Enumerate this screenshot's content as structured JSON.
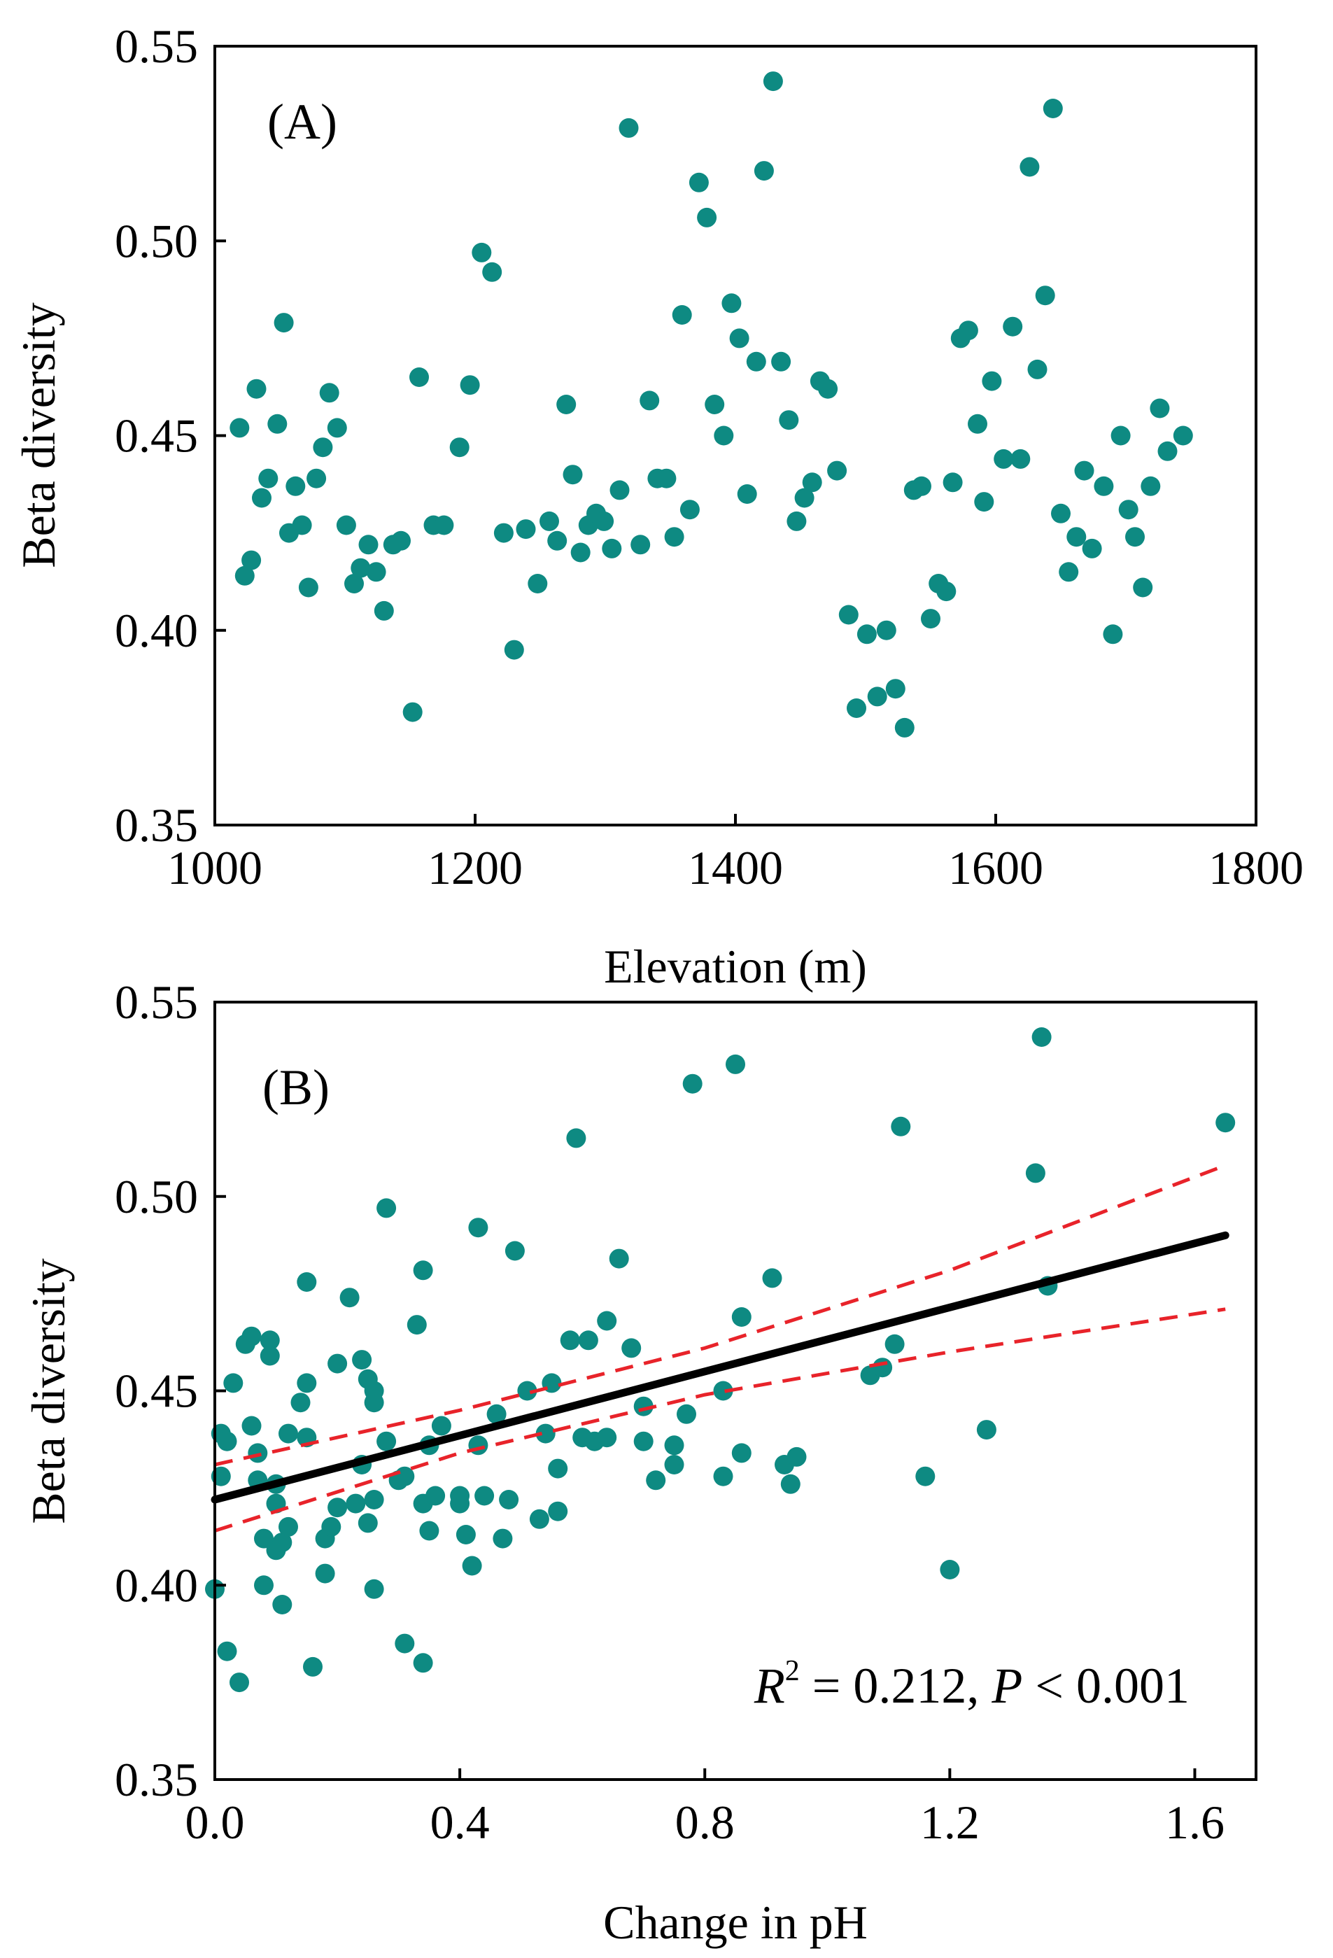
{
  "chart_data": [
    {
      "type": "scatter",
      "panel_label": "(A)",
      "xlabel": "Elevation (m)",
      "ylabel": "Beta diversity",
      "xlim": [
        1000,
        1800
      ],
      "ylim": [
        0.35,
        0.55
      ],
      "xticks": [
        1000,
        1200,
        1400,
        1600,
        1800
      ],
      "xtick_labels": [
        "1000",
        "1200",
        "1400",
        "1600",
        "1800"
      ],
      "yticks": [
        0.35,
        0.4,
        0.45,
        0.5,
        0.55
      ],
      "ytick_labels": [
        "0.35",
        "0.40",
        "0.45",
        "0.50",
        "0.55"
      ],
      "point_color": "#0e8a82",
      "points": [
        [
          1019,
          0.452
        ],
        [
          1023,
          0.414
        ],
        [
          1028,
          0.418
        ],
        [
          1032,
          0.462
        ],
        [
          1036,
          0.434
        ],
        [
          1041,
          0.439
        ],
        [
          1048,
          0.453
        ],
        [
          1053,
          0.479
        ],
        [
          1057,
          0.425
        ],
        [
          1062,
          0.437
        ],
        [
          1067,
          0.427
        ],
        [
          1072,
          0.411
        ],
        [
          1078,
          0.439
        ],
        [
          1083,
          0.447
        ],
        [
          1088,
          0.461
        ],
        [
          1094,
          0.452
        ],
        [
          1101,
          0.427
        ],
        [
          1107,
          0.412
        ],
        [
          1112,
          0.416
        ],
        [
          1118,
          0.422
        ],
        [
          1124,
          0.415
        ],
        [
          1130,
          0.405
        ],
        [
          1137,
          0.422
        ],
        [
          1143,
          0.423
        ],
        [
          1152,
          0.379
        ],
        [
          1157,
          0.465
        ],
        [
          1168,
          0.427
        ],
        [
          1176,
          0.427
        ],
        [
          1188,
          0.447
        ],
        [
          1196,
          0.463
        ],
        [
          1205,
          0.497
        ],
        [
          1213,
          0.492
        ],
        [
          1222,
          0.425
        ],
        [
          1230,
          0.395
        ],
        [
          1239,
          0.426
        ],
        [
          1248,
          0.412
        ],
        [
          1257,
          0.428
        ],
        [
          1263,
          0.423
        ],
        [
          1270,
          0.458
        ],
        [
          1275,
          0.44
        ],
        [
          1281,
          0.42
        ],
        [
          1287,
          0.427
        ],
        [
          1293,
          0.43
        ],
        [
          1299,
          0.428
        ],
        [
          1305,
          0.421
        ],
        [
          1311,
          0.436
        ],
        [
          1318,
          0.529
        ],
        [
          1327,
          0.422
        ],
        [
          1334,
          0.459
        ],
        [
          1340,
          0.439
        ],
        [
          1347,
          0.439
        ],
        [
          1353,
          0.424
        ],
        [
          1359,
          0.481
        ],
        [
          1365,
          0.431
        ],
        [
          1372,
          0.515
        ],
        [
          1378,
          0.506
        ],
        [
          1384,
          0.458
        ],
        [
          1391,
          0.45
        ],
        [
          1397,
          0.484
        ],
        [
          1403,
          0.475
        ],
        [
          1409,
          0.435
        ],
        [
          1416,
          0.469
        ],
        [
          1422,
          0.518
        ],
        [
          1429,
          0.541
        ],
        [
          1435,
          0.469
        ],
        [
          1441,
          0.454
        ],
        [
          1447,
          0.428
        ],
        [
          1453,
          0.434
        ],
        [
          1459,
          0.438
        ],
        [
          1465,
          0.464
        ],
        [
          1471,
          0.462
        ],
        [
          1478,
          0.441
        ],
        [
          1487,
          0.404
        ],
        [
          1493,
          0.38
        ],
        [
          1501,
          0.399
        ],
        [
          1509,
          0.383
        ],
        [
          1516,
          0.4
        ],
        [
          1523,
          0.385
        ],
        [
          1530,
          0.375
        ],
        [
          1537,
          0.436
        ],
        [
          1543,
          0.437
        ],
        [
          1550,
          0.403
        ],
        [
          1556,
          0.412
        ],
        [
          1562,
          0.41
        ],
        [
          1567,
          0.438
        ],
        [
          1573,
          0.475
        ],
        [
          1579,
          0.477
        ],
        [
          1586,
          0.453
        ],
        [
          1591,
          0.433
        ],
        [
          1597,
          0.464
        ],
        [
          1606,
          0.444
        ],
        [
          1613,
          0.478
        ],
        [
          1619,
          0.444
        ],
        [
          1626,
          0.519
        ],
        [
          1632,
          0.467
        ],
        [
          1638,
          0.486
        ],
        [
          1644,
          0.534
        ],
        [
          1650,
          0.43
        ],
        [
          1656,
          0.415
        ],
        [
          1662,
          0.424
        ],
        [
          1668,
          0.441
        ],
        [
          1674,
          0.421
        ],
        [
          1683,
          0.437
        ],
        [
          1690,
          0.399
        ],
        [
          1696,
          0.45
        ],
        [
          1702,
          0.431
        ],
        [
          1707,
          0.424
        ],
        [
          1713,
          0.411
        ],
        [
          1719,
          0.437
        ],
        [
          1726,
          0.457
        ],
        [
          1732,
          0.446
        ],
        [
          1744,
          0.45
        ]
      ]
    },
    {
      "type": "scatter",
      "panel_label": "(B)",
      "xlabel": "Change in pH",
      "ylabel": "Beta diversity",
      "xlim": [
        0.0,
        1.7
      ],
      "ylim": [
        0.35,
        0.55
      ],
      "xticks": [
        0.0,
        0.4,
        0.8,
        1.2,
        1.6
      ],
      "xtick_labels": [
        "0.0",
        "0.4",
        "0.8",
        "1.2",
        "1.6"
      ],
      "yticks": [
        0.35,
        0.4,
        0.45,
        0.5,
        0.55
      ],
      "ytick_labels": [
        "0.35",
        "0.40",
        "0.45",
        "0.50",
        "0.55"
      ],
      "point_color": "#0e8a82",
      "annotation": {
        "r_label": "R",
        "r_exp": "2",
        "r_value": " = 0.212, ",
        "p_label": "P",
        "p_value": " < 0.001"
      },
      "fit": {
        "x": [
          0.0,
          1.65
        ],
        "y": [
          0.422,
          0.49
        ],
        "color": "#000000"
      },
      "ci_upper": {
        "x": [
          0.0,
          0.4,
          0.8,
          1.2,
          1.65
        ],
        "y": [
          0.431,
          0.445,
          0.461,
          0.481,
          0.508
        ],
        "color": "#e8232a"
      },
      "ci_lower": {
        "x": [
          0.0,
          0.4,
          0.8,
          1.2,
          1.65
        ],
        "y": [
          0.414,
          0.434,
          0.449,
          0.46,
          0.471
        ],
        "color": "#e8232a"
      },
      "points": [
        [
          0.0,
          0.399
        ],
        [
          0.01,
          0.439
        ],
        [
          0.01,
          0.428
        ],
        [
          0.02,
          0.437
        ],
        [
          0.02,
          0.383
        ],
        [
          0.03,
          0.452
        ],
        [
          0.04,
          0.375
        ],
        [
          0.05,
          0.462
        ],
        [
          0.06,
          0.464
        ],
        [
          0.06,
          0.441
        ],
        [
          0.07,
          0.434
        ],
        [
          0.07,
          0.427
        ],
        [
          0.08,
          0.412
        ],
        [
          0.08,
          0.4
        ],
        [
          0.09,
          0.459
        ],
        [
          0.09,
          0.463
        ],
        [
          0.1,
          0.409
        ],
        [
          0.1,
          0.421
        ],
        [
          0.1,
          0.426
        ],
        [
          0.11,
          0.395
        ],
        [
          0.11,
          0.411
        ],
        [
          0.12,
          0.415
        ],
        [
          0.12,
          0.439
        ],
        [
          0.14,
          0.447
        ],
        [
          0.15,
          0.452
        ],
        [
          0.15,
          0.478
        ],
        [
          0.15,
          0.438
        ],
        [
          0.16,
          0.379
        ],
        [
          0.18,
          0.403
        ],
        [
          0.18,
          0.412
        ],
        [
          0.19,
          0.415
        ],
        [
          0.2,
          0.42
        ],
        [
          0.2,
          0.457
        ],
        [
          0.22,
          0.474
        ],
        [
          0.23,
          0.421
        ],
        [
          0.24,
          0.431
        ],
        [
          0.24,
          0.458
        ],
        [
          0.25,
          0.416
        ],
        [
          0.25,
          0.453
        ],
        [
          0.26,
          0.399
        ],
        [
          0.26,
          0.447
        ],
        [
          0.26,
          0.45
        ],
        [
          0.26,
          0.422
        ],
        [
          0.28,
          0.437
        ],
        [
          0.28,
          0.497
        ],
        [
          0.3,
          0.427
        ],
        [
          0.31,
          0.428
        ],
        [
          0.31,
          0.385
        ],
        [
          0.33,
          0.467
        ],
        [
          0.34,
          0.421
        ],
        [
          0.34,
          0.38
        ],
        [
          0.34,
          0.481
        ],
        [
          0.35,
          0.414
        ],
        [
          0.35,
          0.436
        ],
        [
          0.36,
          0.423
        ],
        [
          0.37,
          0.441
        ],
        [
          0.4,
          0.421
        ],
        [
          0.4,
          0.423
        ],
        [
          0.41,
          0.413
        ],
        [
          0.42,
          0.405
        ],
        [
          0.43,
          0.492
        ],
        [
          0.43,
          0.436
        ],
        [
          0.44,
          0.423
        ],
        [
          0.46,
          0.444
        ],
        [
          0.47,
          0.412
        ],
        [
          0.48,
          0.422
        ],
        [
          0.49,
          0.486
        ],
        [
          0.51,
          0.45
        ],
        [
          0.53,
          0.417
        ],
        [
          0.54,
          0.439
        ],
        [
          0.55,
          0.452
        ],
        [
          0.56,
          0.419
        ],
        [
          0.56,
          0.43
        ],
        [
          0.58,
          0.463
        ],
        [
          0.59,
          0.515
        ],
        [
          0.6,
          0.438
        ],
        [
          0.61,
          0.463
        ],
        [
          0.62,
          0.437
        ],
        [
          0.64,
          0.438
        ],
        [
          0.64,
          0.468
        ],
        [
          0.66,
          0.484
        ],
        [
          0.68,
          0.461
        ],
        [
          0.7,
          0.446
        ],
        [
          0.7,
          0.437
        ],
        [
          0.72,
          0.427
        ],
        [
          0.75,
          0.436
        ],
        [
          0.75,
          0.431
        ],
        [
          0.77,
          0.444
        ],
        [
          0.78,
          0.529
        ],
        [
          0.83,
          0.428
        ],
        [
          0.83,
          0.45
        ],
        [
          0.85,
          0.534
        ],
        [
          0.86,
          0.434
        ],
        [
          0.86,
          0.469
        ],
        [
          0.91,
          0.479
        ],
        [
          0.93,
          0.431
        ],
        [
          0.94,
          0.426
        ],
        [
          0.95,
          0.433
        ],
        [
          1.07,
          0.454
        ],
        [
          1.09,
          0.456
        ],
        [
          1.11,
          0.462
        ],
        [
          1.12,
          0.518
        ],
        [
          1.16,
          0.428
        ],
        [
          1.2,
          0.404
        ],
        [
          1.26,
          0.44
        ],
        [
          1.34,
          0.506
        ],
        [
          1.35,
          0.541
        ],
        [
          1.36,
          0.477
        ],
        [
          1.65,
          0.519
        ]
      ]
    }
  ]
}
